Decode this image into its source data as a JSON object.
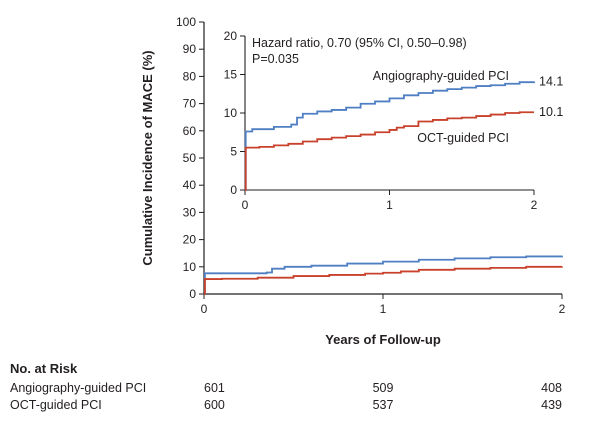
{
  "chart_data": [
    {
      "type": "line",
      "panel": "main",
      "ylabel": "Cumulative Incidence of MACE (%)",
      "xlabel": "Years of Follow-up",
      "xlim": [
        0,
        2
      ],
      "ylim": [
        0,
        100
      ],
      "xticks": [
        "0",
        "1",
        "2"
      ],
      "yticks": [
        "0",
        "10",
        "20",
        "30",
        "40",
        "50",
        "60",
        "70",
        "80",
        "90",
        "100"
      ],
      "series": [
        {
          "name": "Angiography-guided PCI",
          "color": "#4f7fc3",
          "x": [
            0,
            0.005,
            0.35,
            0.38,
            0.45,
            0.6,
            0.8,
            1.0,
            1.2,
            1.4,
            1.6,
            1.8,
            2.0
          ],
          "y": [
            0,
            7.6,
            7.9,
            9.3,
            10.0,
            10.4,
            11.2,
            11.9,
            12.6,
            13.1,
            13.5,
            13.8,
            14.1
          ]
        },
        {
          "name": "OCT-guided PCI",
          "color": "#c8412b",
          "x": [
            0,
            0.005,
            0.1,
            0.3,
            0.5,
            0.7,
            0.9,
            1.0,
            1.1,
            1.2,
            1.4,
            1.6,
            1.8,
            2.0
          ],
          "y": [
            0,
            5.5,
            5.6,
            6.0,
            6.6,
            7.0,
            7.5,
            7.8,
            8.3,
            8.9,
            9.3,
            9.6,
            10.0,
            10.1
          ]
        }
      ]
    },
    {
      "type": "line",
      "panel": "inset",
      "xlim": [
        0,
        2
      ],
      "ylim": [
        0,
        20
      ],
      "xticks": [
        "0",
        "1",
        "2"
      ],
      "yticks": [
        "0",
        "5",
        "10",
        "15",
        "20"
      ],
      "annotation": "Hazard ratio, 0.70 (95% CI, 0.50–0.98)",
      "pvalue": "P=0.035",
      "series": [
        {
          "name": "Angiography-guided PCI",
          "end_label": "14.1",
          "color": "#4f7fc3",
          "x": [
            0,
            0.005,
            0.05,
            0.2,
            0.32,
            0.36,
            0.4,
            0.5,
            0.6,
            0.7,
            0.8,
            0.9,
            1.0,
            1.1,
            1.2,
            1.3,
            1.4,
            1.5,
            1.6,
            1.7,
            1.8,
            1.9,
            2.0
          ],
          "y": [
            0,
            7.6,
            7.9,
            8.2,
            8.5,
            9.4,
            9.9,
            10.2,
            10.4,
            10.7,
            11.2,
            11.5,
            11.9,
            12.3,
            12.6,
            12.9,
            13.1,
            13.3,
            13.5,
            13.6,
            13.8,
            14.0,
            14.1
          ]
        },
        {
          "name": "OCT-guided PCI",
          "end_label": "10.1",
          "color": "#c8412b",
          "x": [
            0,
            0.005,
            0.1,
            0.2,
            0.3,
            0.4,
            0.5,
            0.6,
            0.7,
            0.8,
            0.9,
            1.0,
            1.05,
            1.1,
            1.2,
            1.3,
            1.4,
            1.5,
            1.6,
            1.7,
            1.8,
            1.9,
            2.0
          ],
          "y": [
            0,
            5.5,
            5.6,
            5.8,
            6.0,
            6.3,
            6.6,
            6.8,
            7.0,
            7.2,
            7.5,
            7.8,
            8.1,
            8.3,
            8.9,
            9.1,
            9.3,
            9.4,
            9.6,
            9.8,
            10.0,
            10.1,
            10.1
          ]
        }
      ]
    }
  ],
  "risk_table": {
    "title": "No. at Risk",
    "rows": [
      {
        "label": "Angiography-guided PCI",
        "values": [
          "601",
          "509",
          "408"
        ]
      },
      {
        "label": "OCT-guided PCI",
        "values": [
          "600",
          "537",
          "439"
        ]
      }
    ]
  }
}
